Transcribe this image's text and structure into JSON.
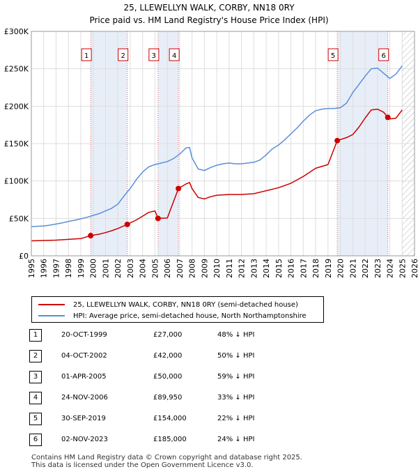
{
  "title_line1": "25, LLEWELLYN WALK, CORBY, NN18 0RY",
  "title_line2": "Price paid vs. HM Land Registry's House Price Index (HPI)",
  "colors": {
    "property": "#cc0000",
    "hpi": "#5b8ed6",
    "marker_band": "#e8eef8",
    "vline": "#cc0000"
  },
  "legend": {
    "property": "25, LLEWELLYN WALK, CORBY, NN18 0RY (semi-detached house)",
    "hpi": "HPI: Average price, semi-detached house, North Northamptonshire"
  },
  "transactions": [
    {
      "num": "1",
      "date": "20-OCT-1999",
      "price": "£27,000",
      "hpi_diff": "48% ↓ HPI"
    },
    {
      "num": "2",
      "date": "04-OCT-2002",
      "price": "£42,000",
      "hpi_diff": "50% ↓ HPI"
    },
    {
      "num": "3",
      "date": "01-APR-2005",
      "price": "£50,000",
      "hpi_diff": "59% ↓ HPI"
    },
    {
      "num": "4",
      "date": "24-NOV-2006",
      "price": "£89,950",
      "hpi_diff": "33% ↓ HPI"
    },
    {
      "num": "5",
      "date": "30-SEP-2019",
      "price": "£154,000",
      "hpi_diff": "22% ↓ HPI"
    },
    {
      "num": "6",
      "date": "02-NOV-2023",
      "price": "£185,000",
      "hpi_diff": "24% ↓ HPI"
    }
  ],
  "footer": {
    "line1": "Contains HM Land Registry data © Crown copyright and database right 2025.",
    "line2": "This data is licensed under the Open Government Licence v3.0."
  },
  "chart_data": {
    "type": "line",
    "xlabel": "",
    "ylabel": "",
    "xlim": [
      1995,
      2026
    ],
    "ylim": [
      0,
      300000
    ],
    "x_ticks": [
      1995,
      1996,
      1997,
      1998,
      1999,
      2000,
      2001,
      2002,
      2003,
      2004,
      2005,
      2006,
      2007,
      2008,
      2009,
      2010,
      2011,
      2012,
      2013,
      2014,
      2015,
      2016,
      2017,
      2018,
      2019,
      2020,
      2021,
      2022,
      2023,
      2024,
      2025,
      2026
    ],
    "y_ticks": [
      {
        "value": 0,
        "label": "£0"
      },
      {
        "value": 50000,
        "label": "£50K"
      },
      {
        "value": 100000,
        "label": "£100K"
      },
      {
        "value": 150000,
        "label": "£150K"
      },
      {
        "value": 200000,
        "label": "£200K"
      },
      {
        "value": 250000,
        "label": "£250K"
      },
      {
        "value": 300000,
        "label": "£300K"
      }
    ],
    "grid": true,
    "shaded_ranges": [
      [
        1999.8,
        2002.76
      ],
      [
        2005.25,
        2006.9
      ],
      [
        2019.75,
        2023.84
      ]
    ],
    "future_hatch_from": 2025.0,
    "sales": [
      {
        "label": "1",
        "x": 1999.8,
        "y": 27000
      },
      {
        "label": "2",
        "x": 2002.76,
        "y": 42000
      },
      {
        "label": "3",
        "x": 2005.25,
        "y": 50000
      },
      {
        "label": "4",
        "x": 2006.9,
        "y": 89950
      },
      {
        "label": "5",
        "x": 2019.75,
        "y": 154000
      },
      {
        "label": "6",
        "x": 2023.84,
        "y": 185000
      }
    ],
    "series": [
      {
        "name": "HPI: Average price, semi-detached house, North Northamptonshire",
        "color": "#5b8ed6",
        "x": [
          1995,
          1995.5,
          1996,
          1996.5,
          1997,
          1997.5,
          1998,
          1998.5,
          1999,
          1999.5,
          2000,
          2000.5,
          2001,
          2001.5,
          2002,
          2002.5,
          2003,
          2003.5,
          2004,
          2004.5,
          2005,
          2005.5,
          2006,
          2006.5,
          2007,
          2007.5,
          2007.8,
          2008,
          2008.5,
          2009,
          2009.5,
          2010,
          2010.5,
          2011,
          2011.5,
          2012,
          2012.5,
          2013,
          2013.5,
          2014,
          2014.5,
          2015,
          2015.5,
          2016,
          2016.5,
          2017,
          2017.5,
          2018,
          2018.5,
          2019,
          2019.5,
          2020,
          2020.5,
          2021,
          2021.5,
          2022,
          2022.5,
          2023,
          2023.5,
          2024,
          2024.5,
          2025
        ],
        "values": [
          39000,
          39500,
          40000,
          41000,
          42500,
          44000,
          46000,
          47500,
          49500,
          51500,
          54000,
          56500,
          60000,
          63500,
          69000,
          80000,
          90000,
          102000,
          112000,
          119000,
          122000,
          124000,
          126000,
          130000,
          136000,
          144000,
          145000,
          131000,
          116000,
          114000,
          118000,
          121000,
          123000,
          124000,
          123000,
          123000,
          124000,
          125000,
          128000,
          135000,
          143000,
          148000,
          155000,
          163000,
          171000,
          180000,
          188000,
          194000,
          196000,
          197000,
          197000,
          198000,
          204000,
          218000,
          229000,
          240000,
          250000,
          251000,
          244000,
          237000,
          243000,
          254000
        ]
      },
      {
        "name": "25, LLEWELLYN WALK, CORBY, NN18 0RY (semi-detached house)",
        "color": "#cc0000",
        "x": [
          1995,
          1996,
          1997,
          1998,
          1999,
          1999.8,
          2000.5,
          2001,
          2001.5,
          2002,
          2002.76,
          2003.5,
          2004,
          2004.5,
          2005,
          2005.25,
          2006,
          2006.9,
          2007.5,
          2007.8,
          2008,
          2008.5,
          2009,
          2009.5,
          2010,
          2011,
          2012,
          2013,
          2014,
          2015,
          2016,
          2017,
          2018,
          2019,
          2019.75,
          2020.5,
          2021,
          2021.5,
          2022,
          2022.5,
          2023,
          2023.5,
          2023.84,
          2024,
          2024.5,
          2025
        ],
        "values": [
          20000,
          20500,
          21000,
          22000,
          23000,
          27000,
          29000,
          31000,
          33500,
          36500,
          42000,
          48000,
          53000,
          58000,
          60000,
          50000,
          50500,
          89950,
          96000,
          98000,
          90000,
          78000,
          76000,
          79000,
          81000,
          82000,
          82000,
          83000,
          87000,
          91000,
          97000,
          106000,
          117000,
          122000,
          154000,
          158000,
          162000,
          172000,
          184000,
          195000,
          196000,
          192000,
          185000,
          183000,
          184000,
          195000
        ]
      }
    ]
  }
}
